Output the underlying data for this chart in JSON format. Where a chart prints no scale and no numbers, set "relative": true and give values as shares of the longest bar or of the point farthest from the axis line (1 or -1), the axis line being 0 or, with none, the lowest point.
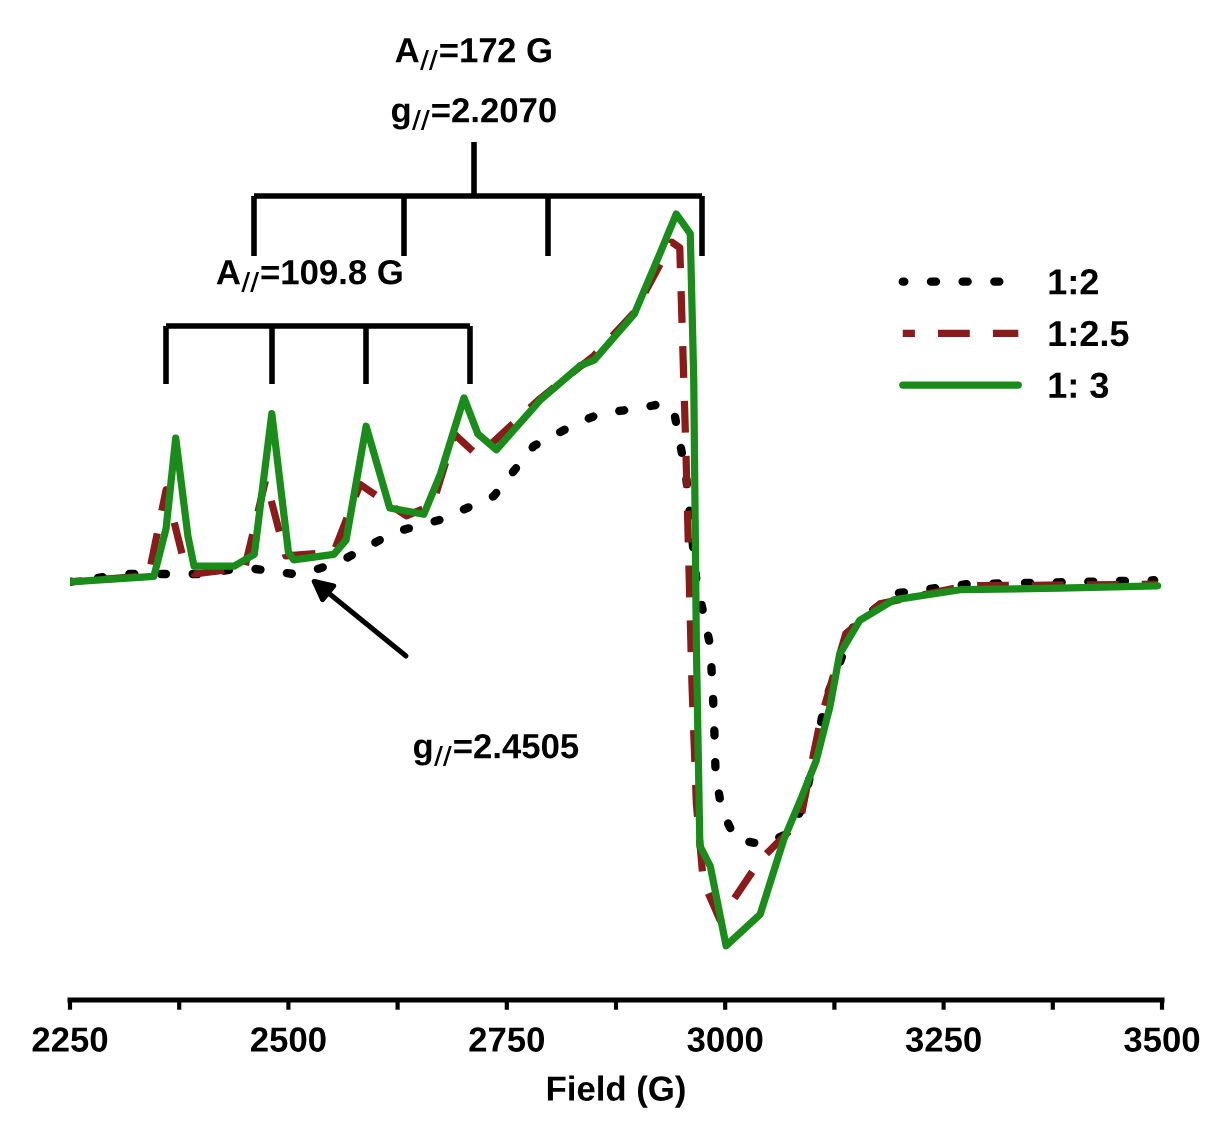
{
  "chart_data": {
    "type": "line",
    "relative": true,
    "xlabel": "Field (G)",
    "xlim": [
      2250,
      3500
    ],
    "xticks": [
      2250,
      {
        "value": 2375,
        "label": null
      },
      2500,
      {
        "value": 2625,
        "label": null
      },
      2750,
      {
        "value": 2875,
        "label": null
      },
      3000,
      {
        "value": 3125,
        "label": null
      },
      3250,
      {
        "value": 3375,
        "label": null
      },
      3500
    ],
    "tick_labels": "x",
    "grid": false,
    "legend": "top right",
    "annotations": [
      "A$_{//}$=172 G",
      "g$_{//}$=2.2070",
      "A$_{//}$=109.8 G",
      "g$_{//}$=2.4505"
    ],
    "series": [
      {
        "name": "1:2",
        "color": "#000000",
        "line_style": "dotted",
        "x": [
          2250,
          2314,
          2399,
          2451,
          2506,
          2536,
          2566,
          2621,
          2674,
          2735,
          2781,
          2829,
          2857,
          2902,
          2925,
          2941,
          2955,
          2967,
          2983,
          2987,
          2989,
          2996,
          3012,
          3044,
          3070,
          3090,
          3115,
          3147,
          3193,
          3276,
          3491
        ],
        "values": [
          0.532,
          0.542,
          0.542,
          0.55,
          0.542,
          0.549,
          0.562,
          0.595,
          0.611,
          0.641,
          0.705,
          0.733,
          0.746,
          0.753,
          0.758,
          0.751,
          0.669,
          0.534,
          0.45,
          0.364,
          0.288,
          0.242,
          0.204,
          0.198,
          0.211,
          0.247,
          0.382,
          0.476,
          0.517,
          0.529,
          0.534
        ]
      },
      {
        "name": "1:2.5",
        "color": "#8b1a1a",
        "line_style": "dashed",
        "x": [
          2250,
          2340,
          2360,
          2380,
          2392,
          2450,
          2474,
          2497,
          2552,
          2582,
          2635,
          2665,
          2690,
          2717,
          2788,
          2850,
          2896,
          2939,
          2948,
          2955,
          2962,
          2967,
          2975,
          2994,
          3040,
          3086,
          3109,
          3138,
          3177,
          3276,
          3495
        ],
        "values": [
          0.532,
          0.54,
          0.649,
          0.56,
          0.542,
          0.55,
          0.662,
          0.565,
          0.57,
          0.656,
          0.616,
          0.63,
          0.72,
          0.692,
          0.765,
          0.82,
          0.875,
          0.964,
          0.957,
          0.7,
          0.4,
          0.25,
          0.15,
          0.102,
          0.178,
          0.229,
          0.356,
          0.466,
          0.504,
          0.527,
          0.529
        ]
      },
      {
        "name": "1: 3",
        "color": "#1a8c1a",
        "line_style": "solid",
        "x": [
          2250,
          2346,
          2360,
          2371,
          2385,
          2392,
          2438,
          2461,
          2481,
          2500,
          2506,
          2552,
          2566,
          2589,
          2616,
          2655,
          2674,
          2701,
          2717,
          2738,
          2788,
          2834,
          2850,
          2896,
          2925,
          2944,
          2960,
          2964,
          2967,
          2971,
          2983,
          3001,
          3040,
          3067,
          3086,
          3104,
          3120,
          3131,
          3154,
          3193,
          3269,
          3383,
          3495
        ],
        "values": [
          0.532,
          0.539,
          0.6,
          0.715,
          0.59,
          0.552,
          0.552,
          0.567,
          0.746,
          0.57,
          0.56,
          0.567,
          0.585,
          0.73,
          0.626,
          0.618,
          0.669,
          0.766,
          0.72,
          0.7,
          0.763,
          0.807,
          0.814,
          0.873,
          0.949,
          1.0,
          0.975,
          0.789,
          0.45,
          0.196,
          0.17,
          0.069,
          0.109,
          0.204,
          0.254,
          0.304,
          0.374,
          0.44,
          0.483,
          0.509,
          0.522,
          0.524,
          0.527
        ]
      }
    ]
  }
}
